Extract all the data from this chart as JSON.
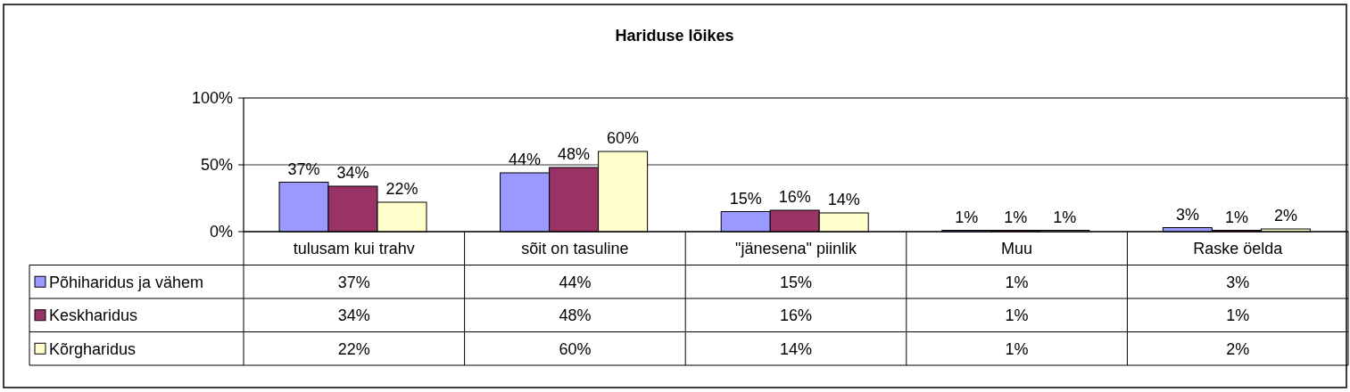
{
  "chart_data": {
    "type": "bar",
    "title": "Hariduse lõikes",
    "categories": [
      "tulusam kui trahv",
      "sõit on tasuline",
      "\"jänesena\" piinlik",
      "Muu",
      "Raske öelda"
    ],
    "series": [
      {
        "name": "Põhiharidus ja vähem",
        "color": "#9999ff",
        "values": [
          37,
          44,
          15,
          1,
          3
        ],
        "value_labels": [
          "37%",
          "44%",
          "15%",
          "1%",
          "3%"
        ]
      },
      {
        "name": "Keskharidus",
        "color": "#993366",
        "values": [
          34,
          48,
          16,
          1,
          1
        ],
        "value_labels": [
          "34%",
          "48%",
          "16%",
          "1%",
          "1%"
        ]
      },
      {
        "name": "Kõrgharidus",
        "color": "#ffffcc",
        "values": [
          22,
          60,
          14,
          1,
          2
        ],
        "value_labels": [
          "22%",
          "60%",
          "14%",
          "1%",
          "2%"
        ]
      }
    ],
    "ylim": [
      0,
      100
    ],
    "yticks": [
      {
        "value": 0,
        "label": "0%"
      },
      {
        "value": 50,
        "label": "50%"
      },
      {
        "value": 100,
        "label": "100%"
      }
    ],
    "grid": "y",
    "legend": "bottom"
  }
}
